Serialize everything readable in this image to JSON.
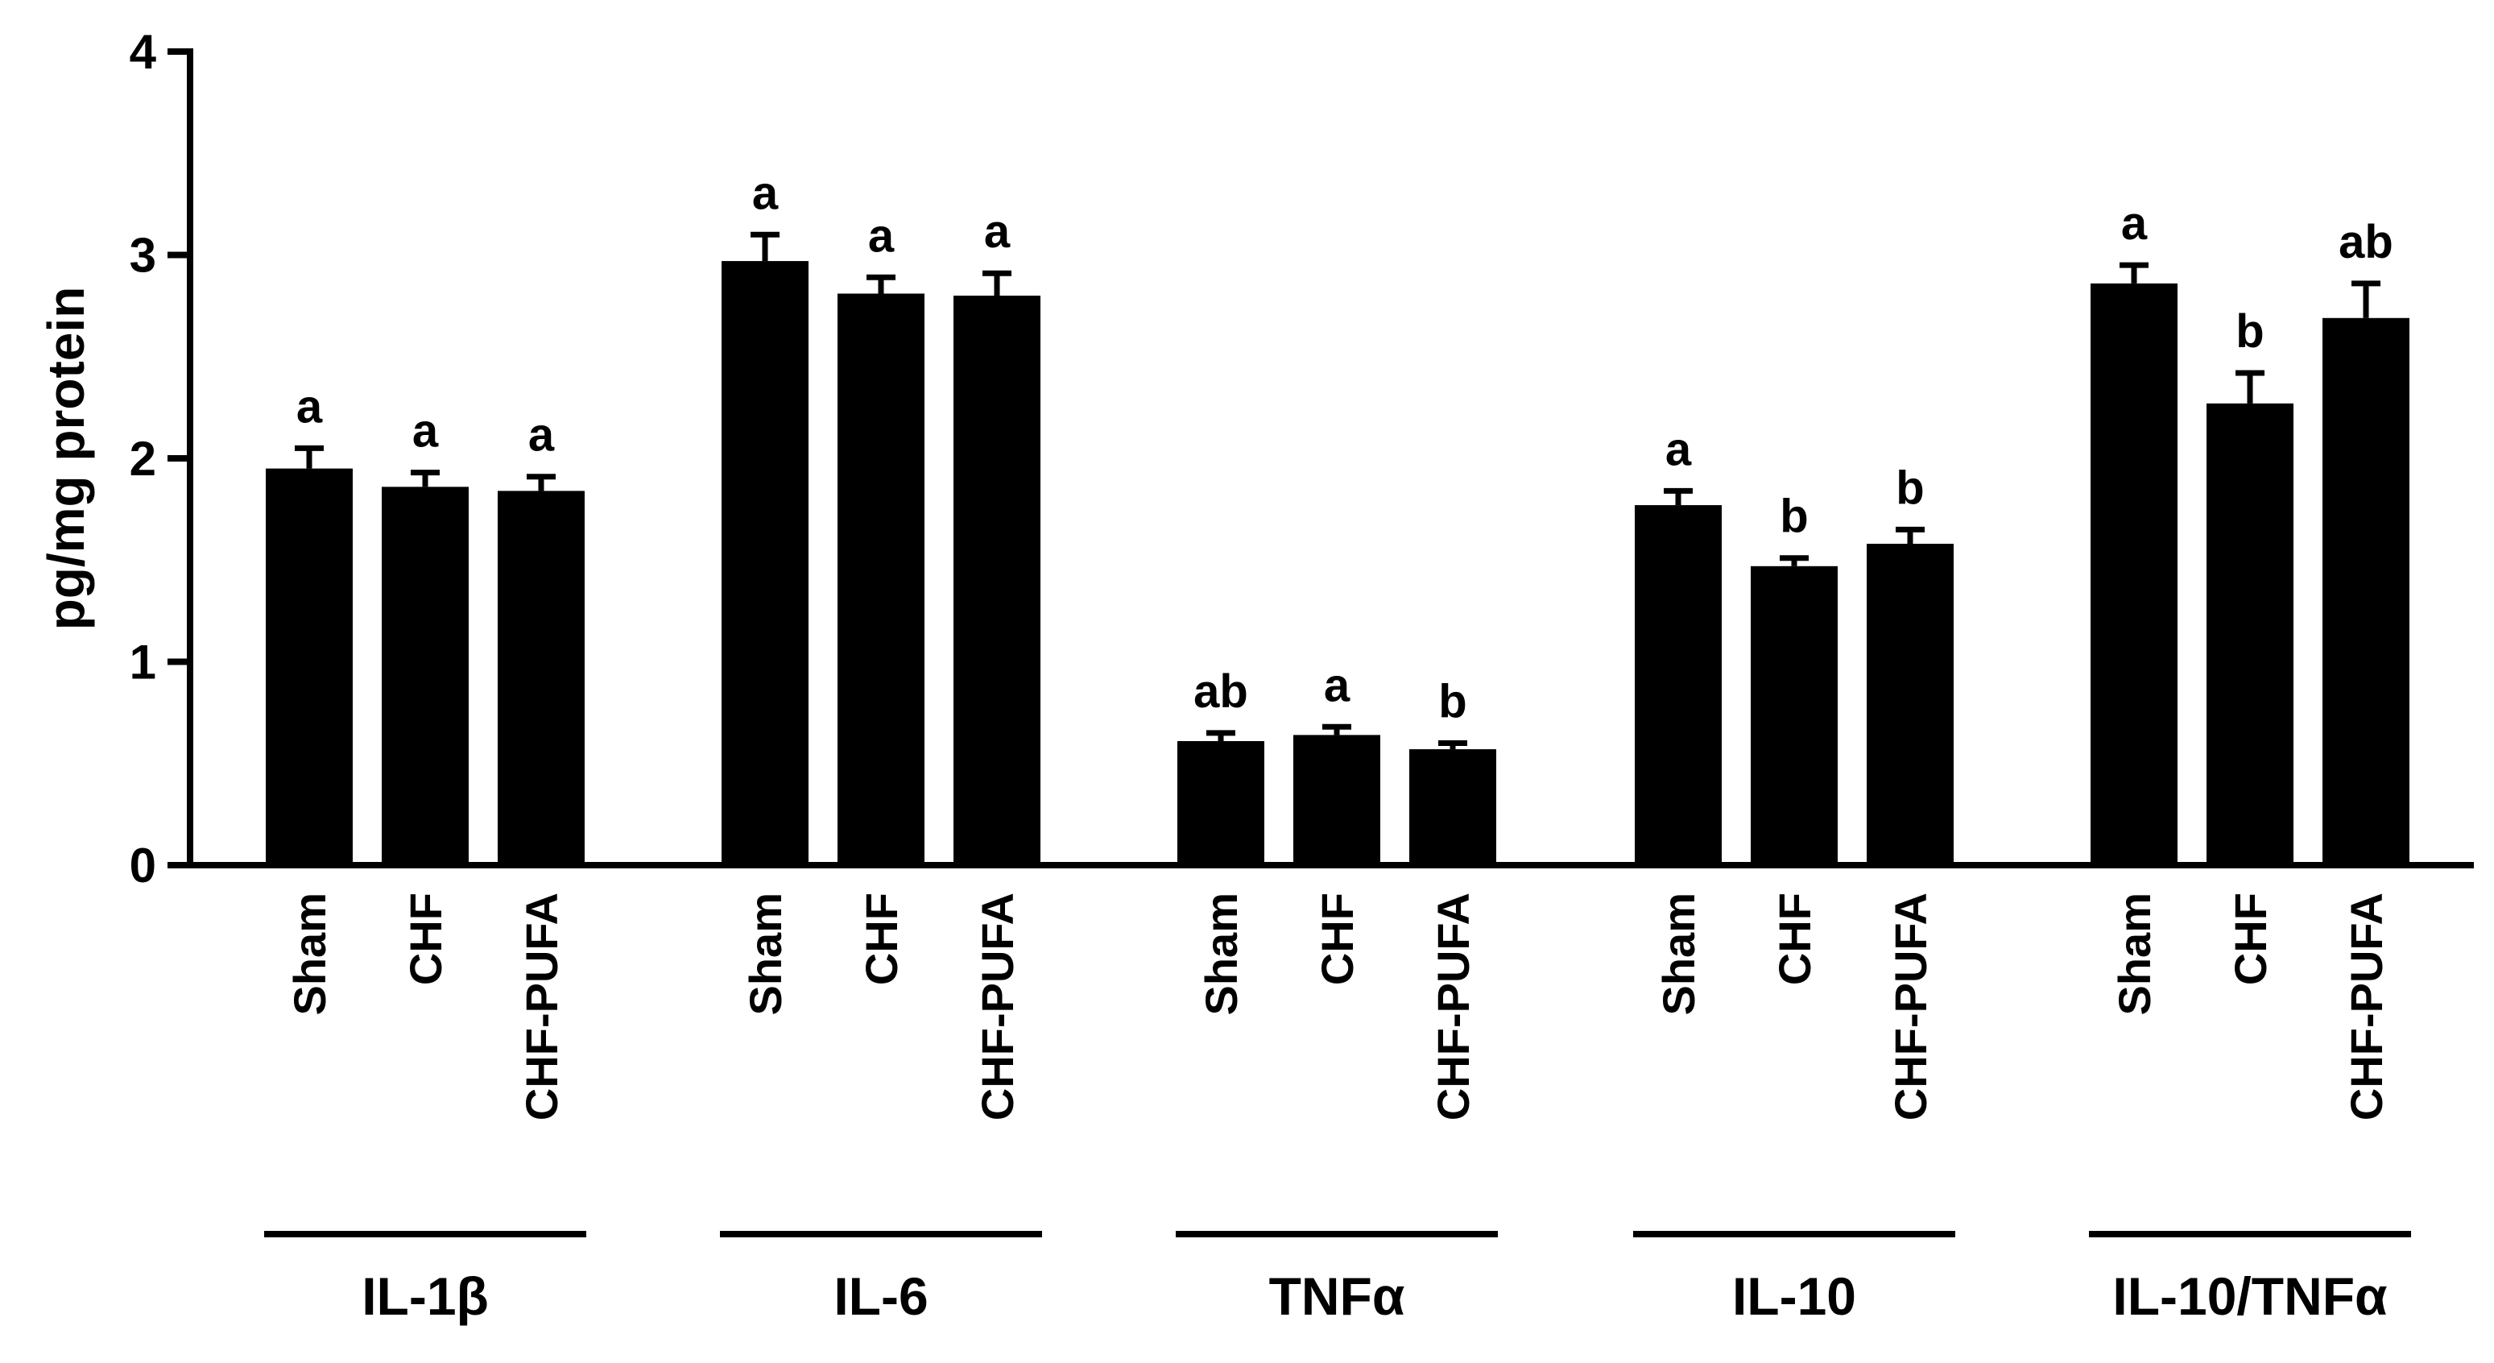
{
  "chart_data": {
    "type": "bar",
    "ylabel": "pg/mg protein",
    "ylim": [
      0,
      4
    ],
    "yticks": [
      "0",
      "1",
      "2",
      "3",
      "4"
    ],
    "grid": false,
    "bar_color": "#000000",
    "groups": [
      {
        "label": "IL-1β",
        "bars": [
          {
            "category": "Sham",
            "value": 1.95,
            "error": 0.1,
            "sig": "a"
          },
          {
            "category": "CHF",
            "value": 1.86,
            "error": 0.07,
            "sig": "a"
          },
          {
            "category": "CHF-PUFA",
            "value": 1.84,
            "error": 0.07,
            "sig": "a"
          }
        ]
      },
      {
        "label": "IL-6",
        "bars": [
          {
            "category": "Sham",
            "value": 2.97,
            "error": 0.13,
            "sig": "a"
          },
          {
            "category": "CHF",
            "value": 2.81,
            "error": 0.08,
            "sig": "a"
          },
          {
            "category": "CHF-PUFA",
            "value": 2.8,
            "error": 0.11,
            "sig": "a"
          }
        ]
      },
      {
        "label": "TNFα",
        "bars": [
          {
            "category": "Sham",
            "value": 0.61,
            "error": 0.04,
            "sig": "ab"
          },
          {
            "category": "CHF",
            "value": 0.64,
            "error": 0.04,
            "sig": "a"
          },
          {
            "category": "CHF-PUFA",
            "value": 0.57,
            "error": 0.03,
            "sig": "b"
          }
        ]
      },
      {
        "label": "IL-10",
        "bars": [
          {
            "category": "Sham",
            "value": 1.77,
            "error": 0.07,
            "sig": "a"
          },
          {
            "category": "CHF",
            "value": 1.47,
            "error": 0.04,
            "sig": "b"
          },
          {
            "category": "CHF-PUFA",
            "value": 1.58,
            "error": 0.07,
            "sig": "b"
          }
        ]
      },
      {
        "label": "IL-10/TNFα",
        "bars": [
          {
            "category": "Sham",
            "value": 2.86,
            "error": 0.09,
            "sig": "a"
          },
          {
            "category": "CHF",
            "value": 2.27,
            "error": 0.15,
            "sig": "b"
          },
          {
            "category": "CHF-PUFA",
            "value": 2.69,
            "error": 0.17,
            "sig": "ab"
          }
        ]
      }
    ]
  }
}
